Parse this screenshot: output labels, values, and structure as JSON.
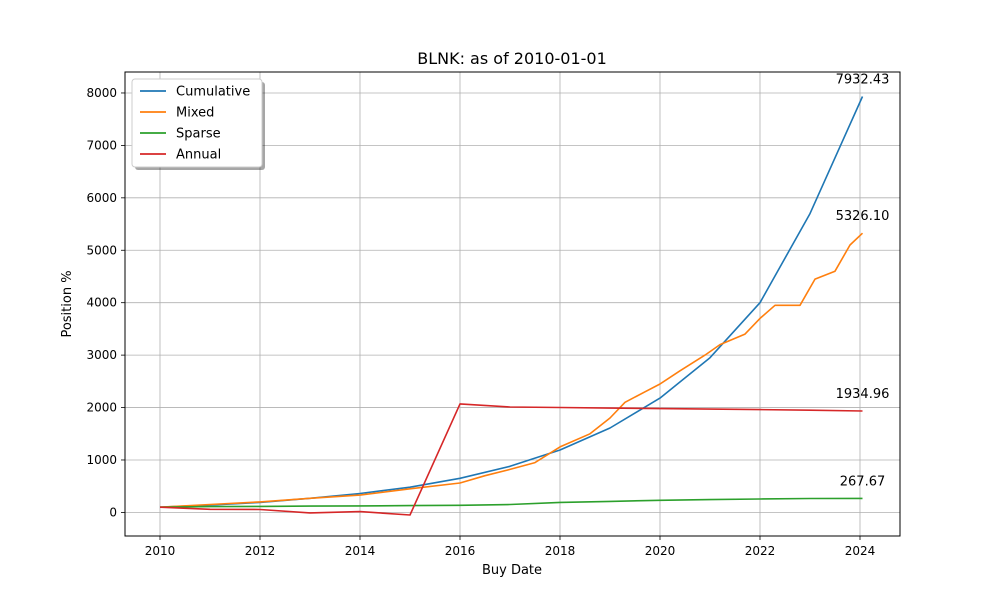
{
  "chart_data": {
    "type": "line",
    "title": "BLNK: as of 2010-01-01",
    "xlabel": "Buy Date",
    "ylabel": "Position %",
    "xlim": [
      2009.3,
      2024.8
    ],
    "ylim": [
      -450,
      8400
    ],
    "xticks": [
      2010,
      2012,
      2014,
      2016,
      2018,
      2020,
      2022,
      2024
    ],
    "yticks": [
      0,
      1000,
      2000,
      3000,
      4000,
      5000,
      6000,
      7000,
      8000
    ],
    "grid": true,
    "legend": "top-left",
    "series": [
      {
        "name": "Cumulative",
        "color": "#1f77b4",
        "end_label": "7932.43",
        "x": [
          2010,
          2011,
          2012,
          2013,
          2014,
          2015,
          2016,
          2017,
          2018,
          2019,
          2020,
          2021,
          2022,
          2023,
          2024.05
        ],
        "y": [
          100,
          140,
          190,
          270,
          360,
          480,
          650,
          880,
          1190,
          1610,
          2180,
          2950,
          4000,
          5700,
          7932.43
        ]
      },
      {
        "name": "Mixed",
        "color": "#ff7f0e",
        "end_label": "5326.10",
        "x": [
          2010,
          2011,
          2012,
          2013,
          2014,
          2015,
          2016,
          2016.5,
          2017,
          2017.5,
          2018,
          2018.6,
          2019,
          2019.3,
          2019.7,
          2020,
          2020.4,
          2020.9,
          2021.2,
          2021.7,
          2022,
          2022.3,
          2022.8,
          2023.1,
          2023.5,
          2023.8,
          2024.05
        ],
        "y": [
          100,
          150,
          200,
          270,
          330,
          450,
          560,
          700,
          820,
          950,
          1250,
          1500,
          1800,
          2100,
          2300,
          2450,
          2700,
          3000,
          3200,
          3400,
          3700,
          3950,
          3950,
          4450,
          4600,
          5100,
          5326.1
        ]
      },
      {
        "name": "Sparse",
        "color": "#2ca02c",
        "end_label": "267.67",
        "x": [
          2010,
          2011,
          2012,
          2013,
          2014,
          2015,
          2016,
          2017,
          2018,
          2019,
          2020,
          2021,
          2022,
          2023,
          2024.05
        ],
        "y": [
          100,
          110,
          115,
          120,
          125,
          130,
          135,
          150,
          190,
          210,
          230,
          245,
          255,
          265,
          267.67
        ]
      },
      {
        "name": "Annual",
        "color": "#d62728",
        "end_label": "1934.96",
        "x": [
          2010,
          2011,
          2012,
          2013,
          2014,
          2015,
          2016,
          2017,
          2018,
          2019,
          2020,
          2021,
          2022,
          2023,
          2024.05
        ],
        "y": [
          100,
          60,
          55,
          -10,
          15,
          -50,
          2070,
          2010,
          2000,
          1990,
          1980,
          1970,
          1960,
          1950,
          1934.96
        ]
      }
    ]
  }
}
